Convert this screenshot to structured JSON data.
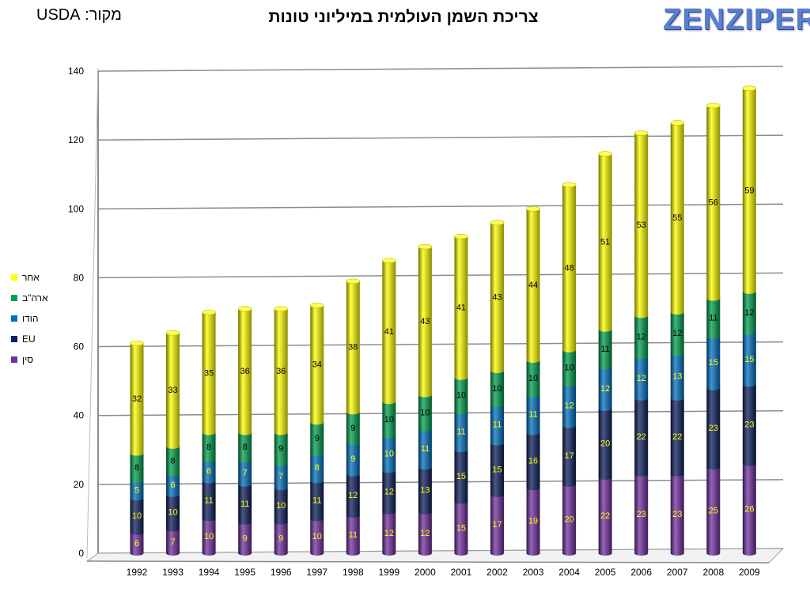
{
  "header": {
    "source": "מקור: USDA",
    "title": "צריכת השמן העולמית במיליוני טונות",
    "logo": "ZENZIPER"
  },
  "chart_data": {
    "type": "bar",
    "stacked": true,
    "title": "צריכת השמן העולמית במיליוני טונות",
    "xlabel": "",
    "ylabel": "",
    "ylim": [
      0,
      140
    ],
    "yticks": [
      0,
      20,
      40,
      60,
      80,
      100,
      120,
      140
    ],
    "grid": true,
    "legend_position": "left",
    "categories": [
      "1992",
      "1993",
      "1994",
      "1995",
      "1996",
      "1997",
      "1998",
      "1999",
      "2000",
      "2001",
      "2002",
      "2003",
      "2004",
      "2005",
      "2006",
      "2007",
      "2008",
      "2009"
    ],
    "series": [
      {
        "name": "סין",
        "color": "#7030a0",
        "label_color": "#ffff00",
        "values": [
          6,
          7,
          10,
          9,
          9,
          10,
          11,
          12,
          12,
          15,
          17,
          19,
          20,
          22,
          23,
          23,
          25,
          26
        ]
      },
      {
        "name": "EU",
        "color": "#0d1f5c",
        "label_color": "#ffff00",
        "values": [
          10,
          10,
          11,
          11,
          10,
          11,
          12,
          12,
          13,
          15,
          15,
          16,
          17,
          20,
          22,
          22,
          23,
          23
        ]
      },
      {
        "name": "הודו",
        "color": "#0070c0",
        "label_color": "#ffff00",
        "values": [
          5,
          6,
          6,
          7,
          7,
          8,
          9,
          10,
          11,
          11,
          11,
          11,
          12,
          12,
          12,
          13,
          15,
          15
        ]
      },
      {
        "name": "ארה\"ב",
        "color": "#00a050",
        "label_color": "#000000",
        "values": [
          8,
          8,
          8,
          8,
          9,
          9,
          9,
          10,
          10,
          10,
          10,
          10,
          10,
          11,
          12,
          12,
          11,
          12
        ]
      },
      {
        "name": "אחר",
        "color": "#ffff00",
        "label_color": "#000000",
        "values": [
          32,
          33,
          35,
          36,
          36,
          34,
          38,
          41,
          43,
          41,
          43,
          44,
          48,
          51,
          53,
          55,
          56,
          59
        ]
      }
    ]
  }
}
